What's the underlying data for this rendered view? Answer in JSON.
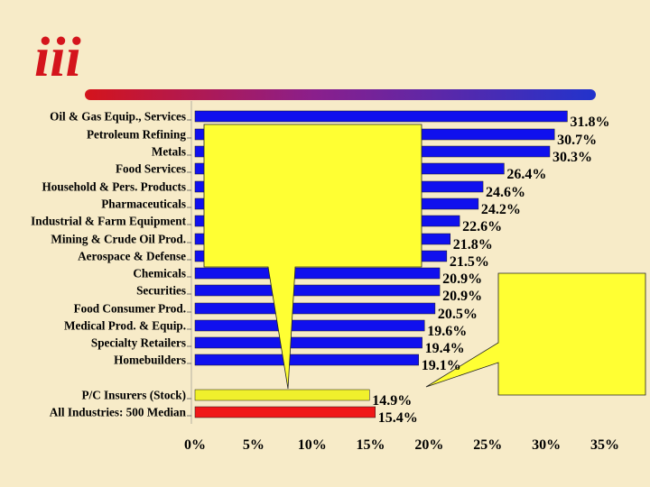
{
  "logo": {
    "text": "iii"
  },
  "colors": {
    "background": "#f7ebc8",
    "bar_default": "#1010ee",
    "bar_highlight": "#f0f02c",
    "bar_median": "#f01818",
    "callout": "#ffff33",
    "rule_start": "#d4141c",
    "rule_end": "#2233cc"
  },
  "chart_data": {
    "type": "bar",
    "orientation": "horizontal",
    "title": "",
    "xlabel": "",
    "ylabel": "",
    "xlim": [
      0,
      35
    ],
    "x_ticks": [
      0,
      5,
      10,
      15,
      20,
      25,
      30,
      35
    ],
    "x_tick_labels": [
      "0%",
      "5%",
      "10%",
      "15%",
      "20%",
      "25%",
      "30%",
      "35%"
    ],
    "categories": [
      "Oil & Gas Equip., Services",
      "Petroleum Refining",
      "Metals",
      "Food Services",
      "Household & Pers. Products",
      "Pharmaceuticals",
      "Industrial & Farm Equipment",
      "Mining & Crude Oil Prod.",
      "Aerospace & Defense",
      "Chemicals",
      "Securities",
      "Food Consumer Prod.",
      "Medical Prod. & Equip.",
      "Specialty Retailers",
      "Homebuilders",
      "P/C Insurers (Stock)",
      "All Industries:  500 Median"
    ],
    "values": [
      31.8,
      30.7,
      30.3,
      26.4,
      24.6,
      24.2,
      22.6,
      21.8,
      21.5,
      20.9,
      20.9,
      20.5,
      19.6,
      19.4,
      19.1,
      14.9,
      15.4
    ],
    "value_labels": [
      "31.8%",
      "30.7%",
      "30.3%",
      "26.4%",
      "24.6%",
      "24.2%",
      "22.6%",
      "21.8%",
      "21.5%",
      "20.9%",
      "20.9%",
      "20.5%",
      "19.6%",
      "19.4%",
      "19.1%",
      "14.9%",
      "15.4%"
    ],
    "bar_kinds": [
      "industry",
      "industry",
      "industry",
      "industry",
      "industry",
      "industry",
      "industry",
      "industry",
      "industry",
      "industry",
      "industry",
      "industry",
      "industry",
      "industry",
      "industry",
      "highlight",
      "median"
    ]
  },
  "callouts": [
    {
      "name": "left-callout",
      "text": ""
    },
    {
      "name": "right-callout",
      "text": ""
    }
  ]
}
